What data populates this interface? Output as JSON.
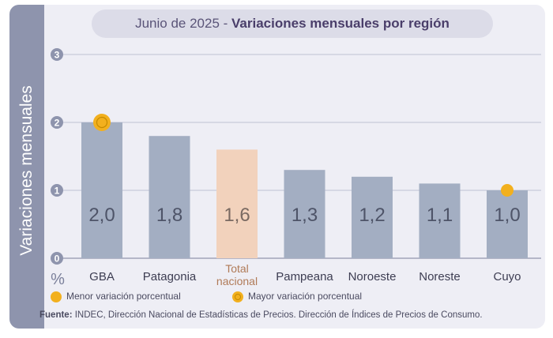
{
  "header": {
    "date_label": "Junio de 2025",
    "separator": " - ",
    "title": "Variaciones mensuales por región"
  },
  "y_axis_label": "Variaciones mensuales",
  "unit_label": "%",
  "legend": {
    "lowest": "Menor variación porcentual",
    "highest": "Mayor variación porcentual"
  },
  "source": {
    "label": "Fuente:",
    "text": "INDEC, Dirección Nacional de Estadísticas de Precios. Dirección de Índices de Precios de Consumo."
  },
  "colors": {
    "bar": "#a3aec2",
    "highlight_bar": "#f2d2bc",
    "highlight_label": "#b07a57",
    "marker": "#f2b01e",
    "sidebar": "#8e94ad"
  },
  "chart_data": {
    "type": "bar",
    "categories": [
      "GBA",
      "Patagonia",
      "Total nacional",
      "Pampeana",
      "Noroeste",
      "Noreste",
      "Cuyo"
    ],
    "values": [
      2.0,
      1.8,
      1.6,
      1.3,
      1.2,
      1.1,
      1.0
    ],
    "value_labels": [
      "2,0",
      "1,8",
      "1,6",
      "1,3",
      "1,2",
      "1,1",
      "1,0"
    ],
    "highlight_category": "Total nacional",
    "max_marker_category": "GBA",
    "min_marker_category": "Cuyo",
    "yticks": [
      "0",
      "1",
      "2",
      "3"
    ],
    "ylim": [
      0,
      3
    ],
    "grid": true
  }
}
